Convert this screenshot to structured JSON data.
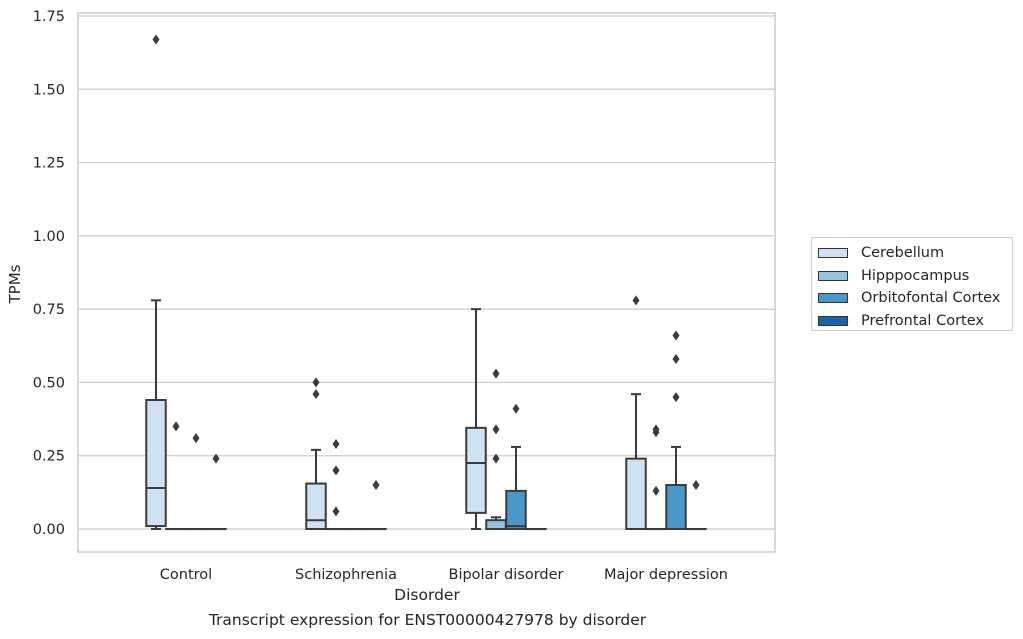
{
  "chart_data": {
    "type": "boxplot",
    "title": "",
    "xlabel": "Disorder",
    "ylabel": "TPMs",
    "caption": "Transcript expression for ENST00000427978 by disorder",
    "ylim": [
      -0.08,
      1.76
    ],
    "yticks": [
      "0.00",
      "0.25",
      "0.50",
      "0.75",
      "1.00",
      "1.25",
      "1.50",
      "1.75"
    ],
    "ytick_values": [
      0,
      0.25,
      0.5,
      0.75,
      1.0,
      1.25,
      1.5,
      1.75
    ],
    "grid": true,
    "legend_position": "right",
    "categories": [
      "Control",
      "Schizophrenia",
      "Bipolar disorder",
      "Major depression"
    ],
    "series": [
      {
        "name": "Cerebellum",
        "color": "#d0e1f2",
        "boxes": [
          {
            "whislo": 0.0,
            "q1": 0.01,
            "med": 0.14,
            "q3": 0.44,
            "whishi": 0.78,
            "fliers": [
              1.67
            ]
          },
          {
            "whislo": 0.0,
            "q1": 0.0,
            "med": 0.03,
            "q3": 0.155,
            "whishi": 0.27,
            "fliers": [
              0.46,
              0.5
            ]
          },
          {
            "whislo": 0.0,
            "q1": 0.055,
            "med": 0.225,
            "q3": 0.345,
            "whishi": 0.75,
            "fliers": []
          },
          {
            "whislo": 0.0,
            "q1": 0.0,
            "med": 0.0,
            "q3": 0.24,
            "whishi": 0.46,
            "fliers": [
              0.78
            ]
          }
        ]
      },
      {
        "name": "Hipppocampus",
        "color": "#94c4df",
        "boxes": [
          {
            "whislo": 0.0,
            "q1": 0.0,
            "med": 0.0,
            "q3": 0.0,
            "whishi": 0.0,
            "fliers": [
              0.35
            ]
          },
          {
            "whislo": 0.0,
            "q1": 0.0,
            "med": 0.0,
            "q3": 0.0,
            "whishi": 0.0,
            "fliers": [
              0.06,
              0.2,
              0.29
            ]
          },
          {
            "whislo": 0.0,
            "q1": 0.0,
            "med": 0.0,
            "q3": 0.03,
            "whishi": 0.04,
            "fliers": [
              0.24,
              0.34,
              0.53
            ]
          },
          {
            "whislo": 0.0,
            "q1": 0.0,
            "med": 0.0,
            "q3": 0.0,
            "whishi": 0.0,
            "fliers": [
              0.13,
              0.33,
              0.34
            ]
          }
        ]
      },
      {
        "name": "Orbitofontal Cortex",
        "color": "#4a98c9",
        "boxes": [
          {
            "whislo": 0.0,
            "q1": 0.0,
            "med": 0.0,
            "q3": 0.0,
            "whishi": 0.0,
            "fliers": [
              0.31
            ]
          },
          {
            "whislo": 0.0,
            "q1": 0.0,
            "med": 0.0,
            "q3": 0.0,
            "whishi": 0.0,
            "fliers": []
          },
          {
            "whislo": 0.0,
            "q1": 0.0,
            "med": 0.01,
            "q3": 0.13,
            "whishi": 0.28,
            "fliers": [
              0.41
            ]
          },
          {
            "whislo": 0.0,
            "q1": 0.0,
            "med": 0.0,
            "q3": 0.15,
            "whishi": 0.28,
            "fliers": [
              0.45,
              0.58,
              0.66
            ]
          }
        ]
      },
      {
        "name": "Prefrontal Cortex",
        "color": "#1764ab",
        "boxes": [
          {
            "whislo": 0.0,
            "q1": 0.0,
            "med": 0.0,
            "q3": 0.0,
            "whishi": 0.0,
            "fliers": [
              0.24
            ]
          },
          {
            "whislo": 0.0,
            "q1": 0.0,
            "med": 0.0,
            "q3": 0.0,
            "whishi": 0.0,
            "fliers": [
              0.15
            ]
          },
          {
            "whislo": 0.0,
            "q1": 0.0,
            "med": 0.0,
            "q3": 0.0,
            "whishi": 0.0,
            "fliers": []
          },
          {
            "whislo": 0.0,
            "q1": 0.0,
            "med": 0.0,
            "q3": 0.0,
            "whishi": 0.0,
            "fliers": [
              0.15
            ]
          }
        ]
      }
    ]
  }
}
